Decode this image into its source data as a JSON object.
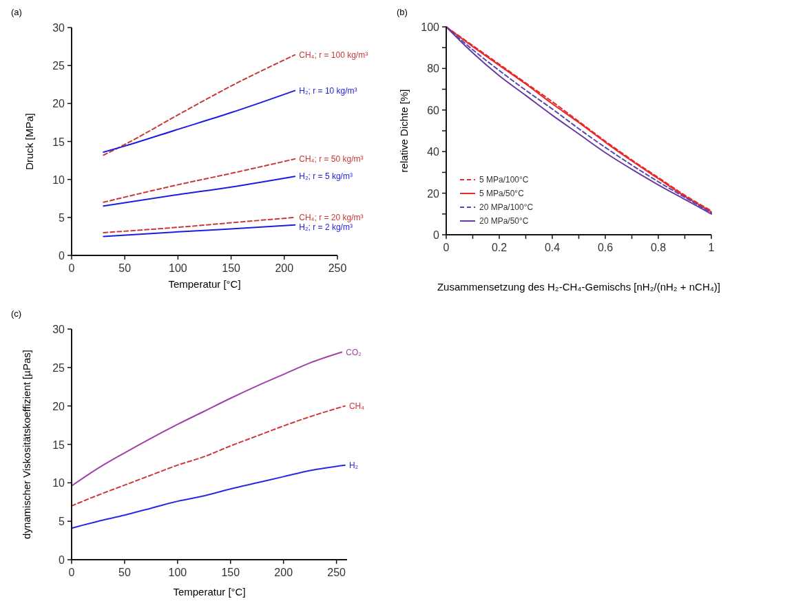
{
  "chart_data": [
    {
      "type": "line",
      "title": "(a)",
      "xlabel": "Temperatur [°C]",
      "ylabel": "Druck [MPa]",
      "xlim": [
        0,
        250
      ],
      "ylim": [
        0,
        30
      ],
      "xticks": [
        0,
        50,
        100,
        150,
        200,
        250
      ],
      "yticks": [
        0,
        5,
        10,
        15,
        20,
        25,
        30
      ],
      "legend": false,
      "series": [
        {
          "name": "CH₄; r = 100 kg/m³",
          "color": "#c83838",
          "line_style": "dashed",
          "x": [
            30,
            50,
            100,
            150,
            210
          ],
          "values": [
            13.2,
            14.6,
            18.5,
            22.3,
            26.4
          ]
        },
        {
          "name": "H₂; r = 10 kg/m³",
          "color": "#1c1ce0",
          "line_style": "solid",
          "x": [
            30,
            50,
            100,
            150,
            210
          ],
          "values": [
            13.6,
            14.4,
            16.6,
            18.8,
            21.7
          ]
        },
        {
          "name": "CH₄; r = 50 kg/m³",
          "color": "#c83838",
          "line_style": "dashed",
          "x": [
            30,
            100,
            150,
            210
          ],
          "values": [
            7.0,
            9.3,
            10.8,
            12.7
          ]
        },
        {
          "name": "H₂; r = 5 kg/m³",
          "color": "#1c1ce0",
          "line_style": "solid",
          "x": [
            30,
            100,
            150,
            210
          ],
          "values": [
            6.5,
            8.0,
            9.0,
            10.4
          ]
        },
        {
          "name": "CH₄; r = 20 kg/m³",
          "color": "#c83838",
          "line_style": "dashed",
          "x": [
            30,
            100,
            150,
            210
          ],
          "values": [
            3.0,
            3.7,
            4.3,
            5.0
          ]
        },
        {
          "name": "H₂; r = 2 kg/m³",
          "color": "#1c1ce0",
          "line_style": "solid",
          "x": [
            30,
            100,
            150,
            210
          ],
          "values": [
            2.5,
            3.1,
            3.5,
            4.0
          ]
        }
      ]
    },
    {
      "type": "line",
      "title": "(b)",
      "xlabel": "Zusammensetzung des H₂-CH₄-Gemischs [nH₂/(nH₂ + nCH₄)]",
      "ylabel": "relative Dichte [%]",
      "xlim": [
        0,
        1
      ],
      "ylim": [
        0,
        100
      ],
      "xticks": [
        0,
        {
          "value": 0.1,
          "label": null
        },
        {
          "value": 0.2,
          "label": "0.2"
        },
        {
          "value": 0.3,
          "label": null
        },
        {
          "value": 0.4,
          "label": "0.4"
        },
        {
          "value": 0.5,
          "label": null
        },
        {
          "value": 0.6,
          "label": "0.6"
        },
        {
          "value": 0.7,
          "label": null
        },
        {
          "value": 0.8,
          "label": "0.8"
        },
        {
          "value": 0.9,
          "label": null
        },
        1
      ],
      "yticks": [
        0,
        {
          "value": 10,
          "label": null
        },
        20,
        {
          "value": 30,
          "label": null
        },
        40,
        {
          "value": 50,
          "label": null
        },
        60,
        {
          "value": 70,
          "label": null
        },
        80,
        {
          "value": 90,
          "label": null
        },
        100
      ],
      "legend": "bottom left",
      "x": [
        0,
        0.1,
        0.2,
        0.3,
        0.4,
        0.5,
        0.6,
        0.7,
        0.8,
        0.9,
        1
      ],
      "series": [
        {
          "name": "5 MPa/100°C",
          "color": "#e82828",
          "line_style": "dashed",
          "values": [
            100,
            91,
            82,
            73,
            64,
            54.5,
            45,
            36,
            27.5,
            19,
            11.5
          ]
        },
        {
          "name": "5 MPa/50°C",
          "color": "#e82828",
          "line_style": "solid",
          "values": [
            100,
            90.5,
            81.5,
            72.5,
            63,
            54,
            44.5,
            35.5,
            27,
            18.5,
            11
          ]
        },
        {
          "name": "20 MPa/100°C",
          "color": "#5048b0",
          "line_style": "dashed",
          "values": [
            100,
            89,
            79,
            69.5,
            60.5,
            51,
            42,
            33.5,
            25.5,
            18,
            10.5
          ]
        },
        {
          "name": "20 MPa/50°C",
          "color": "#6838a8",
          "line_style": "solid",
          "values": [
            100,
            87.5,
            76.5,
            67,
            57.5,
            48.5,
            39.5,
            31.5,
            24,
            17,
            10
          ]
        }
      ]
    },
    {
      "type": "line",
      "title": "(c)",
      "xlabel": "Temperatur [°C]",
      "ylabel": "dynamischer Viskositätskoeffizient [µPas]",
      "xlim": [
        0,
        260
      ],
      "ylim": [
        0,
        30
      ],
      "xticks": [
        0,
        50,
        100,
        150,
        200,
        250
      ],
      "yticks": [
        0,
        5,
        10,
        15,
        20,
        25,
        30
      ],
      "legend": false,
      "series": [
        {
          "name": "CO₂",
          "color": "#a040a8",
          "line_style": "solid",
          "x": [
            0,
            25,
            50,
            75,
            100,
            125,
            150,
            175,
            200,
            225,
            255
          ],
          "values": [
            9.6,
            11.9,
            13.9,
            15.8,
            17.6,
            19.3,
            21.0,
            22.6,
            24.1,
            25.6,
            27.0
          ]
        },
        {
          "name": "CH₄",
          "color": "#d03838",
          "line_style": "dashed",
          "x": [
            0,
            25,
            50,
            75,
            100,
            125,
            150,
            175,
            200,
            225,
            258
          ],
          "values": [
            7.0,
            8.4,
            9.7,
            11.0,
            12.3,
            13.4,
            14.8,
            16.1,
            17.4,
            18.6,
            20.0
          ]
        },
        {
          "name": "H₂",
          "color": "#2828e0",
          "line_style": "solid",
          "x": [
            0,
            25,
            50,
            75,
            100,
            125,
            150,
            175,
            200,
            225,
            258
          ],
          "values": [
            4.1,
            5.0,
            5.8,
            6.7,
            7.6,
            8.3,
            9.2,
            10.0,
            10.8,
            11.6,
            12.3
          ]
        }
      ]
    }
  ]
}
